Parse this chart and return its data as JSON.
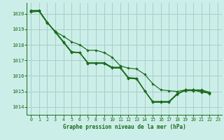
{
  "title": "Graphe pression niveau de la mer (hPa)",
  "bg_color": "#cceee8",
  "grid_color": "#aacccc",
  "line_color": "#1a6b1a",
  "xlim": [
    -0.5,
    23.5
  ],
  "ylim": [
    1013.5,
    1020.7
  ],
  "yticks": [
    1014,
    1015,
    1016,
    1017,
    1018,
    1019,
    1020
  ],
  "xticks": [
    0,
    1,
    2,
    3,
    4,
    5,
    6,
    7,
    8,
    9,
    10,
    11,
    12,
    13,
    14,
    15,
    16,
    17,
    18,
    19,
    20,
    21,
    22,
    23
  ],
  "series": [
    [
      1020.2,
      1020.2,
      1019.45,
      1018.8,
      1018.15,
      1017.5,
      1017.5,
      1016.8,
      1016.8,
      1016.8,
      1016.5,
      1016.5,
      1015.85,
      1015.8,
      1015.05,
      1014.3,
      1014.3,
      1014.3,
      1014.8,
      1015.1,
      1015.1,
      1014.95,
      1014.9,
      null
    ],
    [
      1020.2,
      1020.2,
      1019.45,
      1018.85,
      1018.2,
      1017.55,
      1017.5,
      1016.85,
      1016.85,
      1016.85,
      1016.55,
      1016.55,
      1015.9,
      1015.85,
      1015.05,
      1014.35,
      1014.35,
      1014.35,
      1014.85,
      1015.1,
      1015.1,
      1015.05,
      1014.9,
      null
    ],
    [
      1020.15,
      1020.2,
      1019.45,
      1018.85,
      1018.2,
      1017.55,
      1017.5,
      1016.85,
      1016.85,
      1016.85,
      1016.55,
      1016.55,
      1015.85,
      1015.85,
      1015.05,
      1014.35,
      1014.35,
      1014.35,
      1014.85,
      1015.05,
      1015.05,
      1015.05,
      1014.85,
      null
    ],
    [
      1020.1,
      1020.15,
      1019.4,
      1018.85,
      1018.55,
      1018.2,
      1018.0,
      1017.65,
      1017.65,
      1017.5,
      1017.2,
      1016.65,
      1016.5,
      1016.45,
      1016.1,
      1015.5,
      1015.1,
      1015.05,
      1015.0,
      1015.1,
      1015.1,
      1015.1,
      1014.95,
      null
    ]
  ]
}
